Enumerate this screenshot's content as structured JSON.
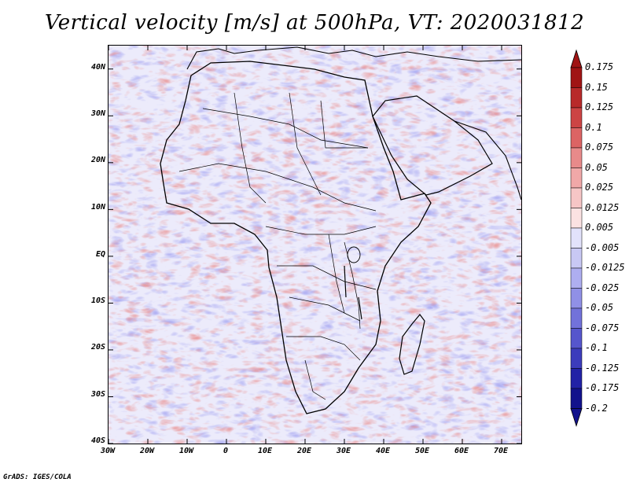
{
  "title": "Vertical velocity [m/s] at 500hPa, VT: 2020031812",
  "credit": "GrADS: IGES/COLA",
  "map": {
    "region": "Africa",
    "lat_range": [
      -40,
      45
    ],
    "lon_range": [
      -30,
      75
    ]
  },
  "axes": {
    "y_ticks": [
      "40N",
      "30N",
      "20N",
      "10N",
      "EQ",
      "10S",
      "20S",
      "30S",
      "40S"
    ],
    "y_values": [
      40,
      30,
      20,
      10,
      0,
      -10,
      -20,
      -30,
      -40
    ],
    "x_ticks": [
      "30W",
      "20W",
      "10W",
      "0",
      "10E",
      "20E",
      "30E",
      "40E",
      "50E",
      "60E",
      "70E"
    ],
    "x_values": [
      -30,
      -20,
      -10,
      0,
      10,
      20,
      30,
      40,
      50,
      60,
      70
    ]
  },
  "colorbar": {
    "labels": [
      "0.175",
      "0.15",
      "0.125",
      "0.1",
      "0.075",
      "0.05",
      "0.025",
      "0.0125",
      "0.005",
      "-0.005",
      "-0.0125",
      "-0.025",
      "-0.05",
      "-0.075",
      "-0.1",
      "-0.125",
      "-0.175",
      "-0.2"
    ],
    "colors": [
      "#a01414",
      "#b82a2a",
      "#cc4444",
      "#dc6464",
      "#e88a8a",
      "#f0a8a8",
      "#f6c6c6",
      "#fbe2e2",
      "#ffffff",
      "#e2e2fb",
      "#c8c8f4",
      "#aeaef0",
      "#9090e6",
      "#7272da",
      "#5656cc",
      "#3c3cbc",
      "#2222a6",
      "#12128c"
    ]
  }
}
